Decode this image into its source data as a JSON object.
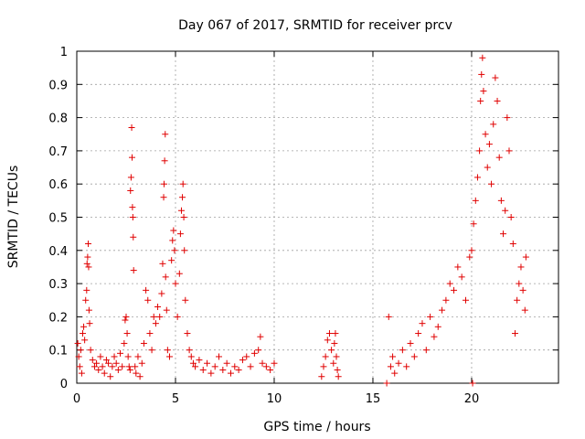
{
  "chart_data": {
    "type": "scatter",
    "title": "Day 067 of 2017, SRMTID for receiver prcv",
    "xlabel": "GPS time / hours",
    "ylabel": "SRMTID / TECUs",
    "xlim": [
      0,
      24.4
    ],
    "ylim": [
      0,
      1
    ],
    "xticks": [
      0,
      5,
      10,
      15,
      20
    ],
    "xtick_labels": [
      "0",
      "5",
      "10",
      "15",
      "20"
    ],
    "yticks": [
      0,
      0.1,
      0.2,
      0.3,
      0.4,
      0.5,
      0.6,
      0.7,
      0.8,
      0.9,
      1
    ],
    "ytick_labels": [
      "0",
      "0.1",
      "0.2",
      "0.3",
      "0.4",
      "0.5",
      "0.6",
      "0.7",
      "0.8",
      "0.9",
      "1"
    ],
    "grid": true,
    "marker": "plus",
    "series": [
      {
        "name": "SRMTID",
        "color": "#e00000",
        "points": [
          [
            0.05,
            0.12
          ],
          [
            0.1,
            0.08
          ],
          [
            0.15,
            0.05
          ],
          [
            0.2,
            0.1
          ],
          [
            0.25,
            0.03
          ],
          [
            0.3,
            0.15
          ],
          [
            0.35,
            0.17
          ],
          [
            0.4,
            0.13
          ],
          [
            0.45,
            0.25
          ],
          [
            0.5,
            0.28
          ],
          [
            0.52,
            0.36
          ],
          [
            0.55,
            0.38
          ],
          [
            0.58,
            0.42
          ],
          [
            0.6,
            0.35
          ],
          [
            0.62,
            0.22
          ],
          [
            0.65,
            0.18
          ],
          [
            0.7,
            0.1
          ],
          [
            0.8,
            0.07
          ],
          [
            0.9,
            0.05
          ],
          [
            1.0,
            0.06
          ],
          [
            1.1,
            0.04
          ],
          [
            1.2,
            0.08
          ],
          [
            1.3,
            0.05
          ],
          [
            1.4,
            0.03
          ],
          [
            1.5,
            0.07
          ],
          [
            1.6,
            0.06
          ],
          [
            1.7,
            0.02
          ],
          [
            1.8,
            0.05
          ],
          [
            1.9,
            0.08
          ],
          [
            2.0,
            0.06
          ],
          [
            2.1,
            0.04
          ],
          [
            2.2,
            0.09
          ],
          [
            2.3,
            0.05
          ],
          [
            2.4,
            0.12
          ],
          [
            2.45,
            0.19
          ],
          [
            2.5,
            0.2
          ],
          [
            2.55,
            0.15
          ],
          [
            2.6,
            0.08
          ],
          [
            2.65,
            0.05
          ],
          [
            2.7,
            0.04
          ],
          [
            2.72,
            0.58
          ],
          [
            2.75,
            0.62
          ],
          [
            2.78,
            0.77
          ],
          [
            2.8,
            0.68
          ],
          [
            2.82,
            0.53
          ],
          [
            2.84,
            0.5
          ],
          [
            2.86,
            0.44
          ],
          [
            2.88,
            0.34
          ],
          [
            2.95,
            0.05
          ],
          [
            3.0,
            0.03
          ],
          [
            3.1,
            0.08
          ],
          [
            3.2,
            0.02
          ],
          [
            3.3,
            0.06
          ],
          [
            3.4,
            0.12
          ],
          [
            3.5,
            0.28
          ],
          [
            3.6,
            0.25
          ],
          [
            3.7,
            0.15
          ],
          [
            3.8,
            0.1
          ],
          [
            3.9,
            0.2
          ],
          [
            4.0,
            0.18
          ],
          [
            4.1,
            0.23
          ],
          [
            4.2,
            0.2
          ],
          [
            4.3,
            0.27
          ],
          [
            4.35,
            0.36
          ],
          [
            4.4,
            0.56
          ],
          [
            4.42,
            0.6
          ],
          [
            4.45,
            0.67
          ],
          [
            4.48,
            0.75
          ],
          [
            4.5,
            0.32
          ],
          [
            4.55,
            0.22
          ],
          [
            4.6,
            0.1
          ],
          [
            4.7,
            0.08
          ],
          [
            4.8,
            0.37
          ],
          [
            4.85,
            0.43
          ],
          [
            4.9,
            0.46
          ],
          [
            4.95,
            0.4
          ],
          [
            5.0,
            0.3
          ],
          [
            5.1,
            0.2
          ],
          [
            5.2,
            0.33
          ],
          [
            5.25,
            0.45
          ],
          [
            5.3,
            0.52
          ],
          [
            5.35,
            0.56
          ],
          [
            5.38,
            0.6
          ],
          [
            5.42,
            0.5
          ],
          [
            5.45,
            0.4
          ],
          [
            5.5,
            0.25
          ],
          [
            5.6,
            0.15
          ],
          [
            5.7,
            0.1
          ],
          [
            5.8,
            0.08
          ],
          [
            5.9,
            0.06
          ],
          [
            6.0,
            0.05
          ],
          [
            6.2,
            0.07
          ],
          [
            6.4,
            0.04
          ],
          [
            6.6,
            0.06
          ],
          [
            6.8,
            0.03
          ],
          [
            7.0,
            0.05
          ],
          [
            7.2,
            0.08
          ],
          [
            7.4,
            0.04
          ],
          [
            7.6,
            0.06
          ],
          [
            7.8,
            0.03
          ],
          [
            8.0,
            0.05
          ],
          [
            8.2,
            0.04
          ],
          [
            8.4,
            0.07
          ],
          [
            8.6,
            0.08
          ],
          [
            8.8,
            0.05
          ],
          [
            9.0,
            0.09
          ],
          [
            9.2,
            0.1
          ],
          [
            9.3,
            0.14
          ],
          [
            9.4,
            0.06
          ],
          [
            9.6,
            0.05
          ],
          [
            9.8,
            0.04
          ],
          [
            10.0,
            0.06
          ],
          [
            12.4,
            0.02
          ],
          [
            12.5,
            0.05
          ],
          [
            12.6,
            0.08
          ],
          [
            12.7,
            0.13
          ],
          [
            12.8,
            0.15
          ],
          [
            12.9,
            0.1
          ],
          [
            13.0,
            0.06
          ],
          [
            13.05,
            0.12
          ],
          [
            13.1,
            0.15
          ],
          [
            13.15,
            0.08
          ],
          [
            13.2,
            0.04
          ],
          [
            13.25,
            0.02
          ],
          [
            15.7,
            0.0
          ],
          [
            15.8,
            0.2
          ],
          [
            15.9,
            0.05
          ],
          [
            16.0,
            0.08
          ],
          [
            16.1,
            0.03
          ],
          [
            16.3,
            0.06
          ],
          [
            16.5,
            0.1
          ],
          [
            16.7,
            0.05
          ],
          [
            16.9,
            0.12
          ],
          [
            17.1,
            0.08
          ],
          [
            17.3,
            0.15
          ],
          [
            17.5,
            0.18
          ],
          [
            17.7,
            0.1
          ],
          [
            17.9,
            0.2
          ],
          [
            18.1,
            0.14
          ],
          [
            18.3,
            0.17
          ],
          [
            18.5,
            0.22
          ],
          [
            18.7,
            0.25
          ],
          [
            18.9,
            0.3
          ],
          [
            19.1,
            0.28
          ],
          [
            19.3,
            0.35
          ],
          [
            19.5,
            0.32
          ],
          [
            19.7,
            0.25
          ],
          [
            19.9,
            0.38
          ],
          [
            20.0,
            0.4
          ],
          [
            20.05,
            0.0
          ],
          [
            20.1,
            0.48
          ],
          [
            20.2,
            0.55
          ],
          [
            20.3,
            0.62
          ],
          [
            20.4,
            0.7
          ],
          [
            20.45,
            0.85
          ],
          [
            20.5,
            0.93
          ],
          [
            20.55,
            0.98
          ],
          [
            20.6,
            0.88
          ],
          [
            20.7,
            0.75
          ],
          [
            20.8,
            0.65
          ],
          [
            20.9,
            0.72
          ],
          [
            21.0,
            0.6
          ],
          [
            21.1,
            0.78
          ],
          [
            21.2,
            0.92
          ],
          [
            21.3,
            0.85
          ],
          [
            21.4,
            0.68
          ],
          [
            21.5,
            0.55
          ],
          [
            21.6,
            0.45
          ],
          [
            21.7,
            0.52
          ],
          [
            21.8,
            0.8
          ],
          [
            21.9,
            0.7
          ],
          [
            22.0,
            0.5
          ],
          [
            22.1,
            0.42
          ],
          [
            22.2,
            0.15
          ],
          [
            22.3,
            0.25
          ],
          [
            22.4,
            0.3
          ],
          [
            22.5,
            0.35
          ],
          [
            22.6,
            0.28
          ],
          [
            22.7,
            0.22
          ],
          [
            22.75,
            0.38
          ]
        ]
      }
    ]
  }
}
